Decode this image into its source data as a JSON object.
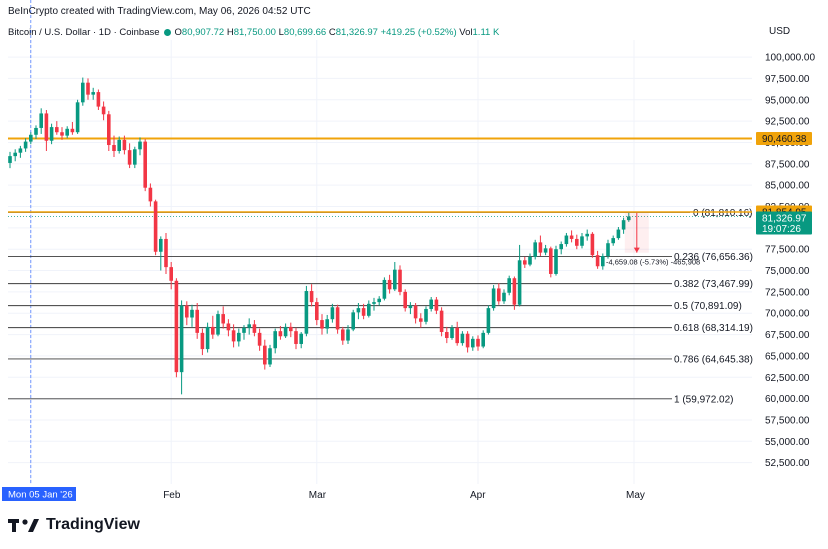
{
  "header": {
    "text": "BeInCrypto created with TradingView.com, May 06, 2026 04:52 UTC"
  },
  "legend": {
    "symbol": "Bitcoin / U.S. Dollar · 1D · Coinbase",
    "open_label": "O",
    "open": "80,907.72",
    "high_label": "H",
    "high": "81,750.00",
    "low_label": "L",
    "low": "80,699.66",
    "close_label": "C",
    "close": "81,326.97",
    "change": "+419.25 (+0.52%)",
    "vol_label": "Vol",
    "vol": "1.11 K"
  },
  "currency": "USD",
  "brand": "TradingView",
  "colors": {
    "up": "#089981",
    "down": "#f23645",
    "resistance": "#f0a30a",
    "fib": "#3b3b3b",
    "crosshair": "#2962ff"
  },
  "chart_data": {
    "type": "candlestick",
    "title": "Bitcoin / U.S. Dollar · 1D · Coinbase",
    "ylim": [
      50000,
      102000
    ],
    "y_ticks": [
      52500,
      55000,
      57500,
      60000,
      62500,
      65000,
      67500,
      70000,
      72500,
      75000,
      77500,
      80000,
      82500,
      85000,
      87500,
      90000,
      92500,
      95000,
      97500,
      100000
    ],
    "y_tick_labels": [
      "52,500.00",
      "55,000.00",
      "57,500.00",
      "60,000.00",
      "62,500.00",
      "65,000.00",
      "67,500.00",
      "70,000.00",
      "72,500.00",
      "75,000.00",
      "77,500.00",
      "80,000.00",
      "82,500.00",
      "85,000.00",
      "87,500.00",
      "90,000.00",
      "92,500.00",
      "95,000.00",
      "97,500.00",
      "100,000.00"
    ],
    "x_labels": [
      {
        "label": "Mon 05 Jan '26",
        "index": 4,
        "highlight": true
      },
      {
        "label": "Feb",
        "index": 31
      },
      {
        "label": "Mar",
        "index": 59
      },
      {
        "label": "Apr",
        "index": 90
      },
      {
        "label": "May",
        "index": 120
      }
    ],
    "candles": [
      [
        87600,
        88900,
        87000,
        88400
      ],
      [
        88400,
        89200,
        87800,
        88800
      ],
      [
        88800,
        89600,
        88200,
        89300
      ],
      [
        89300,
        90500,
        88900,
        90100
      ],
      [
        90100,
        91200,
        89800,
        90900
      ],
      [
        90900,
        92000,
        90400,
        91700
      ],
      [
        91700,
        94000,
        91000,
        93400
      ],
      [
        93400,
        93800,
        89000,
        90200
      ],
      [
        90200,
        92200,
        89800,
        91800
      ],
      [
        91800,
        92500,
        90900,
        91200
      ],
      [
        91200,
        91800,
        90300,
        90800
      ],
      [
        90800,
        91900,
        90500,
        91600
      ],
      [
        91600,
        92400,
        90900,
        91200
      ],
      [
        91200,
        95000,
        91000,
        94700
      ],
      [
        94700,
        97600,
        94300,
        97000
      ],
      [
        97000,
        97500,
        95000,
        95600
      ],
      [
        95600,
        96400,
        95000,
        95900
      ],
      [
        95900,
        96200,
        93800,
        94200
      ],
      [
        94200,
        94800,
        92600,
        93300
      ],
      [
        93300,
        93700,
        89000,
        89700
      ],
      [
        89700,
        90800,
        88300,
        89000
      ],
      [
        89000,
        90700,
        88700,
        90300
      ],
      [
        90300,
        90800,
        88600,
        89100
      ],
      [
        89100,
        89900,
        87000,
        87400
      ],
      [
        87400,
        89500,
        87000,
        89200
      ],
      [
        89200,
        90600,
        88500,
        90100
      ],
      [
        90100,
        90400,
        84300,
        84700
      ],
      [
        84700,
        85200,
        82500,
        83100
      ],
      [
        83100,
        83300,
        76800,
        77200
      ],
      [
        77200,
        79000,
        75000,
        78700
      ],
      [
        78700,
        79400,
        74600,
        75400
      ],
      [
        75400,
        76000,
        72800,
        73800
      ],
      [
        73800,
        74100,
        62500,
        63100
      ],
      [
        63100,
        71500,
        60500,
        70900
      ],
      [
        70900,
        71400,
        68600,
        69500
      ],
      [
        69500,
        71000,
        68400,
        70400
      ],
      [
        70400,
        71200,
        67000,
        67700
      ],
      [
        67700,
        68200,
        65100,
        65800
      ],
      [
        65800,
        68900,
        65400,
        68400
      ],
      [
        68400,
        69700,
        67000,
        67500
      ],
      [
        67500,
        70300,
        67300,
        69900
      ],
      [
        69900,
        70800,
        68200,
        68800
      ],
      [
        68800,
        69300,
        67300,
        68000
      ],
      [
        68000,
        68700,
        66000,
        66700
      ],
      [
        66700,
        68200,
        66100,
        67700
      ],
      [
        67700,
        68600,
        66900,
        68300
      ],
      [
        68300,
        69400,
        67500,
        68700
      ],
      [
        68700,
        69200,
        67300,
        67700
      ],
      [
        67700,
        68200,
        65600,
        66200
      ],
      [
        66200,
        66900,
        63400,
        64000
      ],
      [
        64000,
        66300,
        63700,
        65900
      ],
      [
        65900,
        68200,
        65300,
        67900
      ],
      [
        67900,
        68500,
        66900,
        67300
      ],
      [
        67300,
        68800,
        67100,
        68400
      ],
      [
        68400,
        68900,
        67200,
        67900
      ],
      [
        67900,
        68300,
        65800,
        66400
      ],
      [
        66400,
        67800,
        65900,
        67600
      ],
      [
        67600,
        73200,
        67300,
        72600
      ],
      [
        72600,
        73400,
        70800,
        71300
      ],
      [
        71300,
        71800,
        68600,
        69200
      ],
      [
        69200,
        69900,
        67500,
        68200
      ],
      [
        68200,
        69800,
        67600,
        69300
      ],
      [
        69300,
        71100,
        68900,
        70700
      ],
      [
        70700,
        71000,
        67600,
        68100
      ],
      [
        68100,
        68400,
        66300,
        66800
      ],
      [
        66800,
        68600,
        66400,
        68100
      ],
      [
        68100,
        70400,
        67900,
        70100
      ],
      [
        70100,
        71200,
        69300,
        70600
      ],
      [
        70600,
        71100,
        69300,
        69700
      ],
      [
        69700,
        71500,
        69500,
        71100
      ],
      [
        71100,
        71800,
        70300,
        71300
      ],
      [
        71300,
        72000,
        70900,
        71700
      ],
      [
        71700,
        74200,
        71500,
        73900
      ],
      [
        73900,
        74500,
        72300,
        72800
      ],
      [
        72800,
        76000,
        72600,
        75100
      ],
      [
        75100,
        75600,
        72100,
        72500
      ],
      [
        72500,
        72800,
        70200,
        70600
      ],
      [
        70600,
        71300,
        69900,
        70900
      ],
      [
        70900,
        71200,
        68800,
        69400
      ],
      [
        69400,
        70000,
        68300,
        69000
      ],
      [
        69000,
        70800,
        68700,
        70500
      ],
      [
        70500,
        71900,
        70200,
        71600
      ],
      [
        71600,
        71900,
        69900,
        70300
      ],
      [
        70300,
        70700,
        67300,
        67800
      ],
      [
        67800,
        68400,
        66500,
        67100
      ],
      [
        67100,
        68600,
        66900,
        68300
      ],
      [
        68300,
        69000,
        66200,
        66500
      ],
      [
        66500,
        67900,
        66200,
        67600
      ],
      [
        67600,
        67900,
        65400,
        66000
      ],
      [
        66000,
        67300,
        65600,
        67000
      ],
      [
        67000,
        67400,
        65600,
        66100
      ],
      [
        66100,
        68000,
        65900,
        67700
      ],
      [
        67700,
        70900,
        67500,
        70600
      ],
      [
        70600,
        73300,
        70300,
        72900
      ],
      [
        72900,
        73500,
        71000,
        71400
      ],
      [
        71400,
        72800,
        71100,
        72400
      ],
      [
        72400,
        74400,
        72100,
        74100
      ],
      [
        74100,
        74300,
        70400,
        71000
      ],
      [
        71000,
        78000,
        70800,
        76200
      ],
      [
        76200,
        76600,
        75300,
        75700
      ],
      [
        75700,
        77000,
        75500,
        76600
      ],
      [
        76600,
        78600,
        76300,
        78300
      ],
      [
        78300,
        79100,
        76700,
        77100
      ],
      [
        77100,
        78000,
        76800,
        77600
      ],
      [
        77600,
        77800,
        74200,
        74600
      ],
      [
        74600,
        77900,
        74400,
        77500
      ],
      [
        77500,
        78400,
        76900,
        78100
      ],
      [
        78100,
        79400,
        77800,
        79100
      ],
      [
        79100,
        79700,
        78300,
        78700
      ],
      [
        78700,
        79200,
        77500,
        77900
      ],
      [
        77900,
        79400,
        77600,
        79000
      ],
      [
        79000,
        79800,
        78500,
        79300
      ],
      [
        79300,
        79500,
        76500,
        76800
      ],
      [
        76800,
        77300,
        75200,
        75500
      ],
      [
        75500,
        77000,
        75100,
        76700
      ],
      [
        76700,
        78600,
        76400,
        78200
      ],
      [
        78200,
        79100,
        77900,
        78800
      ],
      [
        78800,
        80100,
        78600,
        79800
      ],
      [
        79800,
        81200,
        79300,
        80900
      ],
      [
        80900,
        81750,
        80700,
        81327
      ]
    ],
    "fib_levels": [
      {
        "ratio": "0",
        "value": 81810.16,
        "label": "0 (81,810.16)"
      },
      {
        "ratio": "0.236",
        "value": 76656.36,
        "label": "0.236 (76,656.36)"
      },
      {
        "ratio": "0.382",
        "value": 73467.99,
        "label": "0.382 (73,467.99)"
      },
      {
        "ratio": "0.5",
        "value": 70891.09,
        "label": "0.5 (70,891.09)"
      },
      {
        "ratio": "0.618",
        "value": 68314.19,
        "label": "0.618 (68,314.19)"
      },
      {
        "ratio": "0.786",
        "value": 64645.38,
        "label": "0.786 (64,645.38)"
      },
      {
        "ratio": "1",
        "value": 59972.02,
        "label": "1 (59,972.02)"
      }
    ],
    "horizontal_lines": [
      {
        "value": 90460.38,
        "label": "90,460.38"
      },
      {
        "value": 81854.95,
        "label": "81,854.95"
      }
    ],
    "last_price": {
      "value": 81326.97,
      "label": "81,326.97",
      "countdown": "19:07:26"
    },
    "measure": {
      "from": 81750.0,
      "to": 77091.0,
      "text": "-4,659.08 (-5.73%) -465,908"
    },
    "crosshair_index": 4
  }
}
